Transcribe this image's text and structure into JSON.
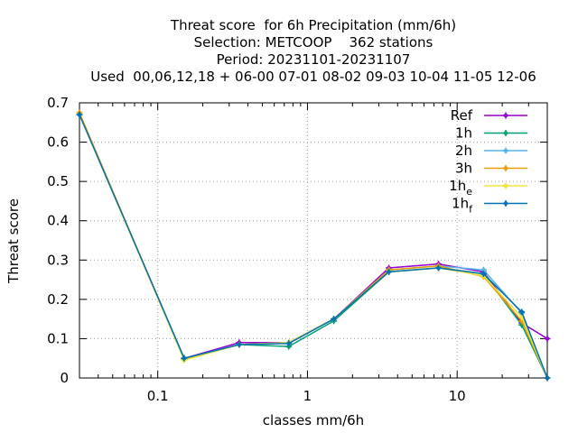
{
  "chart_data": {
    "type": "line",
    "title_lines": [
      "Threat score  for 6h Precipitation (mm/6h)",
      "Selection: METCOOP    362 stations",
      "Period: 20231101-20231107",
      "Used  00,06,12,18 + 06-00 07-01 08-02 09-03 10-04 11-05 12-06"
    ],
    "xlabel": "classes mm/6h",
    "ylabel": "Threat score",
    "xscale": "log",
    "xlim": [
      0.03,
      40
    ],
    "ylim": [
      0,
      0.7
    ],
    "x_ticks": [
      {
        "value": 0.1,
        "label": "0.1"
      },
      {
        "value": 1,
        "label": "1"
      },
      {
        "value": 10,
        "label": "10"
      }
    ],
    "y_ticks": [
      {
        "value": 0,
        "label": "0"
      },
      {
        "value": 0.1,
        "label": "0.1"
      },
      {
        "value": 0.2,
        "label": "0.2"
      },
      {
        "value": 0.3,
        "label": "0.3"
      },
      {
        "value": 0.4,
        "label": "0.4"
      },
      {
        "value": 0.5,
        "label": "0.5"
      },
      {
        "value": 0.6,
        "label": "0.6"
      },
      {
        "value": 0.7,
        "label": "0.7"
      }
    ],
    "grid": true,
    "legend_position": "top-right",
    "x": [
      0.03,
      0.15,
      0.35,
      0.75,
      1.5,
      3.5,
      7.5,
      15,
      27,
      40
    ],
    "series": [
      {
        "name": "Ref",
        "subscript": "",
        "color": "#9400d3",
        "values": [
          0.67,
          0.05,
          0.09,
          0.09,
          0.15,
          0.28,
          0.29,
          0.27,
          0.14,
          0.1
        ]
      },
      {
        "name": "1h",
        "subscript": "",
        "color": "#009e73",
        "values": [
          0.67,
          0.05,
          0.085,
          0.08,
          0.145,
          0.27,
          0.28,
          0.265,
          0.135,
          0.0
        ]
      },
      {
        "name": "2h",
        "subscript": "",
        "color": "#56b4e9",
        "values": [
          0.67,
          0.05,
          0.085,
          0.09,
          0.15,
          0.275,
          0.285,
          0.275,
          0.165,
          0.0
        ]
      },
      {
        "name": "3h",
        "subscript": "",
        "color": "#e69f00",
        "values": [
          0.675,
          0.048,
          0.085,
          0.09,
          0.15,
          0.275,
          0.285,
          0.258,
          0.145,
          0.0
        ]
      },
      {
        "name": "1h",
        "subscript": "e",
        "color": "#f0e442",
        "values": [
          0.67,
          0.045,
          0.085,
          0.09,
          0.15,
          0.27,
          0.28,
          0.26,
          0.155,
          0.0
        ]
      },
      {
        "name": "1h",
        "subscript": "f",
        "color": "#0072b2",
        "values": [
          0.67,
          0.05,
          0.085,
          0.088,
          0.15,
          0.27,
          0.28,
          0.265,
          0.168,
          0.0
        ]
      }
    ]
  }
}
